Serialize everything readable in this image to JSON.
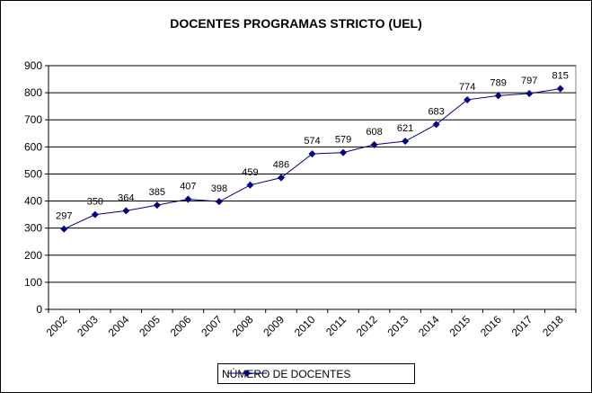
{
  "chart_data": {
    "type": "line",
    "title": "DOCENTES PROGRAMAS STRICTO (UEL)",
    "categories": [
      "2002",
      "2003",
      "2004",
      "2005",
      "2006",
      "2007",
      "2008",
      "2009",
      "2010",
      "2011",
      "2012",
      "2013",
      "2014",
      "2015",
      "2016",
      "2017",
      "2018"
    ],
    "series": [
      {
        "name": "NÚMERO DE DOCENTES",
        "values": [
          297,
          350,
          364,
          385,
          407,
          398,
          459,
          486,
          574,
          579,
          608,
          621,
          683,
          774,
          789,
          797,
          815
        ],
        "color": "#000080"
      }
    ],
    "ylim": [
      0,
      900
    ],
    "yticks": [
      0,
      100,
      200,
      300,
      400,
      500,
      600,
      700,
      800,
      900
    ],
    "grid": true,
    "legend": "bottom"
  }
}
